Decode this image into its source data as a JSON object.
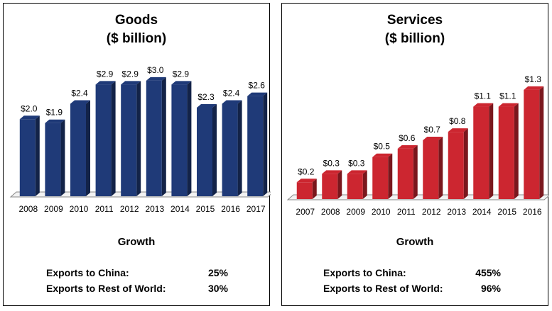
{
  "chart_data": [
    {
      "type": "bar",
      "title": "Goods",
      "subtitle": "($ billion)",
      "categories": [
        "2008",
        "2009",
        "2010",
        "2011",
        "2012",
        "2013",
        "2014",
        "2015",
        "2016",
        "2017"
      ],
      "values": [
        2.0,
        1.9,
        2.4,
        2.9,
        2.9,
        3.0,
        2.9,
        2.3,
        2.4,
        2.6
      ],
      "data_labels": [
        "$2.0",
        "$1.9",
        "$2.4",
        "$2.9",
        "$2.9",
        "$3.0",
        "$2.9",
        "$2.3",
        "$2.4",
        "$2.6"
      ],
      "ylim": [
        0,
        3.2
      ],
      "bar_color": "#1f3a78",
      "grid": false
    },
    {
      "type": "bar",
      "title": "Services",
      "subtitle": "($ billion)",
      "categories": [
        "2007",
        "2008",
        "2009",
        "2010",
        "2011",
        "2012",
        "2013",
        "2014",
        "2015",
        "2016"
      ],
      "values": [
        0.2,
        0.3,
        0.3,
        0.5,
        0.6,
        0.7,
        0.8,
        1.1,
        1.1,
        1.3
      ],
      "data_labels": [
        "$0.2",
        "$0.3",
        "$0.3",
        "$0.5",
        "$0.6",
        "$0.7",
        "$0.8",
        "$1.1",
        "$1.1",
        "$1.3"
      ],
      "ylim": [
        0,
        1.4
      ],
      "bar_color": "#cc2630",
      "grid": false
    }
  ],
  "panels": [
    {
      "growth_title": "Growth",
      "rows": [
        {
          "label": "Exports to China:",
          "value": "25%"
        },
        {
          "label": "Exports to Rest of World:",
          "value": "30%"
        }
      ]
    },
    {
      "growth_title": "Growth",
      "rows": [
        {
          "label": "Exports to China:",
          "value": "455%"
        },
        {
          "label": "Exports to Rest of World:",
          "value": "96%"
        }
      ]
    }
  ]
}
